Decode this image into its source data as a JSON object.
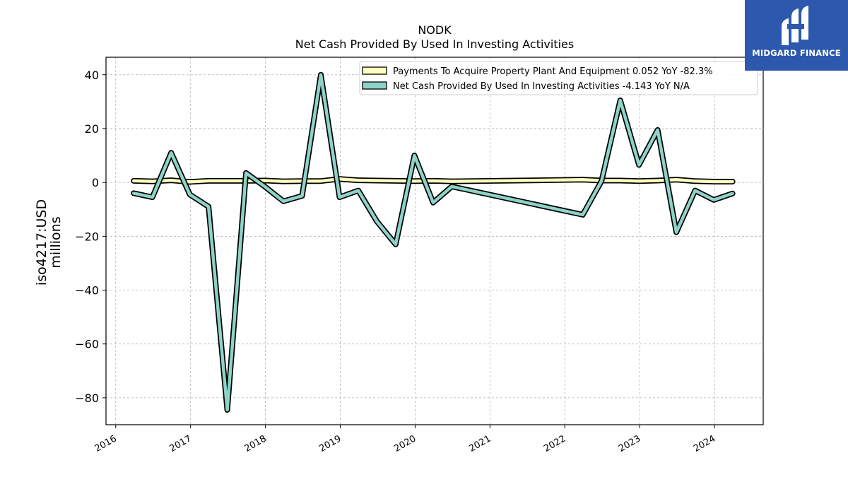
{
  "chart_data": {
    "type": "line",
    "title": "NODK",
    "subtitle": "Net Cash Provided By Used In Investing Activities",
    "ylabel_line1": "iso4217:USD",
    "ylabel_line2": "millions",
    "ylim": [
      -90,
      46.5
    ],
    "xlim": [
      2015.87,
      2024.65
    ],
    "yticks": [
      40,
      20,
      0,
      -20,
      -40,
      -60,
      -80
    ],
    "ytick_labels": [
      "40",
      "20",
      "0",
      "−20",
      "−40",
      "−60",
      "−80"
    ],
    "xticks": [
      2016,
      2017,
      2018,
      2019,
      2020,
      2021,
      2022,
      2023,
      2024
    ],
    "xtick_labels": [
      "2016",
      "2017",
      "2018",
      "2019",
      "2020",
      "2021",
      "2022",
      "2023",
      "2024"
    ],
    "grid": true,
    "legend_position": "top-right",
    "series": [
      {
        "name": "Payments To Acquire Property Plant And Equipment  0.052 YoY -82.3%",
        "color": "#ffffbf",
        "x": [
          2016.24,
          2016.49,
          2016.74,
          2016.99,
          2017.24,
          2017.49,
          2017.74,
          2017.99,
          2018.24,
          2018.49,
          2018.74,
          2018.99,
          2019.24,
          2019.49,
          2019.74,
          2019.99,
          2020.24,
          2020.49,
          2022.24,
          2022.49,
          2022.74,
          2022.99,
          2023.24,
          2023.49,
          2023.74,
          2023.99,
          2024.24
        ],
        "values": [
          0.6,
          0.4,
          0.8,
          0.2,
          0.6,
          0.6,
          0.6,
          0.7,
          0.4,
          0.5,
          0.5,
          1.3,
          0.8,
          0.7,
          0.6,
          0.5,
          0.6,
          0.4,
          1.0,
          0.7,
          0.7,
          0.5,
          0.7,
          1.0,
          0.5,
          0.3,
          0.3
        ]
      },
      {
        "name": "Net Cash Provided By Used In Investing Activities  -4.143 YoY N/A",
        "color": "#8dd3c7",
        "x": [
          2016.24,
          2016.49,
          2016.74,
          2016.99,
          2017.24,
          2017.49,
          2017.74,
          2017.99,
          2018.24,
          2018.49,
          2018.74,
          2018.99,
          2019.24,
          2019.49,
          2019.74,
          2019.99,
          2020.24,
          2020.49,
          2022.24,
          2022.49,
          2022.74,
          2022.99,
          2023.24,
          2023.49,
          2023.74,
          2023.99,
          2024.24
        ],
        "values": [
          -4.0,
          -5.5,
          11.0,
          -4.5,
          -9.0,
          -84.5,
          3.5,
          -1.5,
          -7.0,
          -5.0,
          40.0,
          -5.5,
          -3.0,
          -14.5,
          -23.0,
          10.0,
          -7.5,
          -1.5,
          -12.0,
          0.5,
          30.5,
          6.5,
          19.5,
          -18.5,
          -3.0,
          -6.5,
          -4.1
        ]
      }
    ]
  },
  "logo": {
    "text": "MIDGARD FINANCE"
  }
}
